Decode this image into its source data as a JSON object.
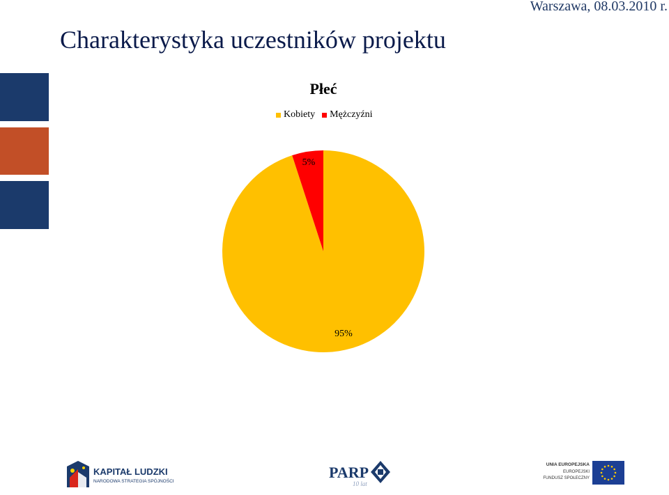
{
  "header": {
    "date": "Warszawa, 08.03.2010 r.",
    "title": "Charakterystyka uczestników projektu"
  },
  "colors": {
    "navy": "#1b3a6b",
    "orange": "#c24f27",
    "kobiety": "#ffc000",
    "mezczyzni": "#ff0000"
  },
  "chart_data": {
    "type": "pie",
    "title": "Płeć",
    "legend_position": "top",
    "slices": [
      {
        "name": "Kobiety",
        "value": 95,
        "label": "95%",
        "color": "#ffc000"
      },
      {
        "name": "Mężczyźni",
        "value": 5,
        "label": "5%",
        "color": "#ff0000"
      }
    ]
  },
  "footer": {
    "kapital_title": "KAPITAŁ LUDZKI",
    "kapital_subtitle": "NARODOWA STRATEGIA SPÓJNOŚCI",
    "parp_title": "PARP",
    "parp_subtitle": "10 lat",
    "ue_line1": "UNIA EUROPEJSKA",
    "ue_line2": "EUROPEJSKI",
    "ue_line3": "FUNDUSZ SPOŁECZNY"
  }
}
